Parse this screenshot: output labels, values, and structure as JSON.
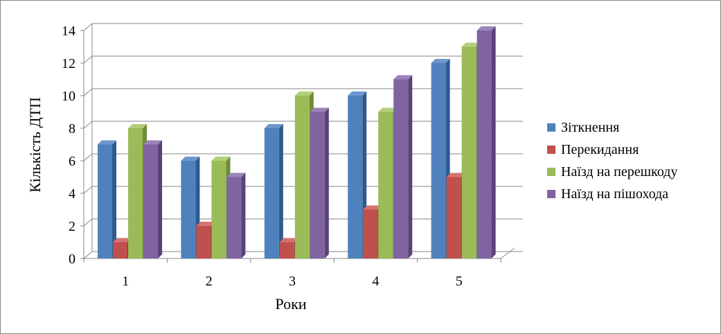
{
  "chart_data": {
    "type": "bar",
    "categories": [
      "1",
      "2",
      "3",
      "4",
      "5"
    ],
    "series": [
      {
        "name": "Зіткнення",
        "values": [
          7,
          6,
          8,
          10,
          12
        ],
        "color": "#4F81BD",
        "side": "#2E5A8C",
        "top": "#6F97CD"
      },
      {
        "name": "Перекидання",
        "values": [
          1,
          2,
          1,
          3,
          5
        ],
        "color": "#C0504D",
        "side": "#8B2F2D",
        "top": "#D47472"
      },
      {
        "name": "Наїзд на перешкоду",
        "values": [
          8,
          6,
          10,
          9,
          13
        ],
        "color": "#9BBB59",
        "side": "#6E8B36",
        "top": "#B2CF7C"
      },
      {
        "name": "Наїзд на пішохода",
        "values": [
          7,
          5,
          9,
          11,
          14
        ],
        "color": "#8064A2",
        "side": "#5A4277",
        "top": "#9B83BA"
      }
    ],
    "title": "",
    "xlabel": "Роки",
    "ylabel": "Кількість ДТП",
    "ylim": [
      0,
      14
    ],
    "yticks": [
      "0",
      "2",
      "4",
      "6",
      "8",
      "10",
      "12",
      "14"
    ],
    "grid": true,
    "legend": "right"
  }
}
